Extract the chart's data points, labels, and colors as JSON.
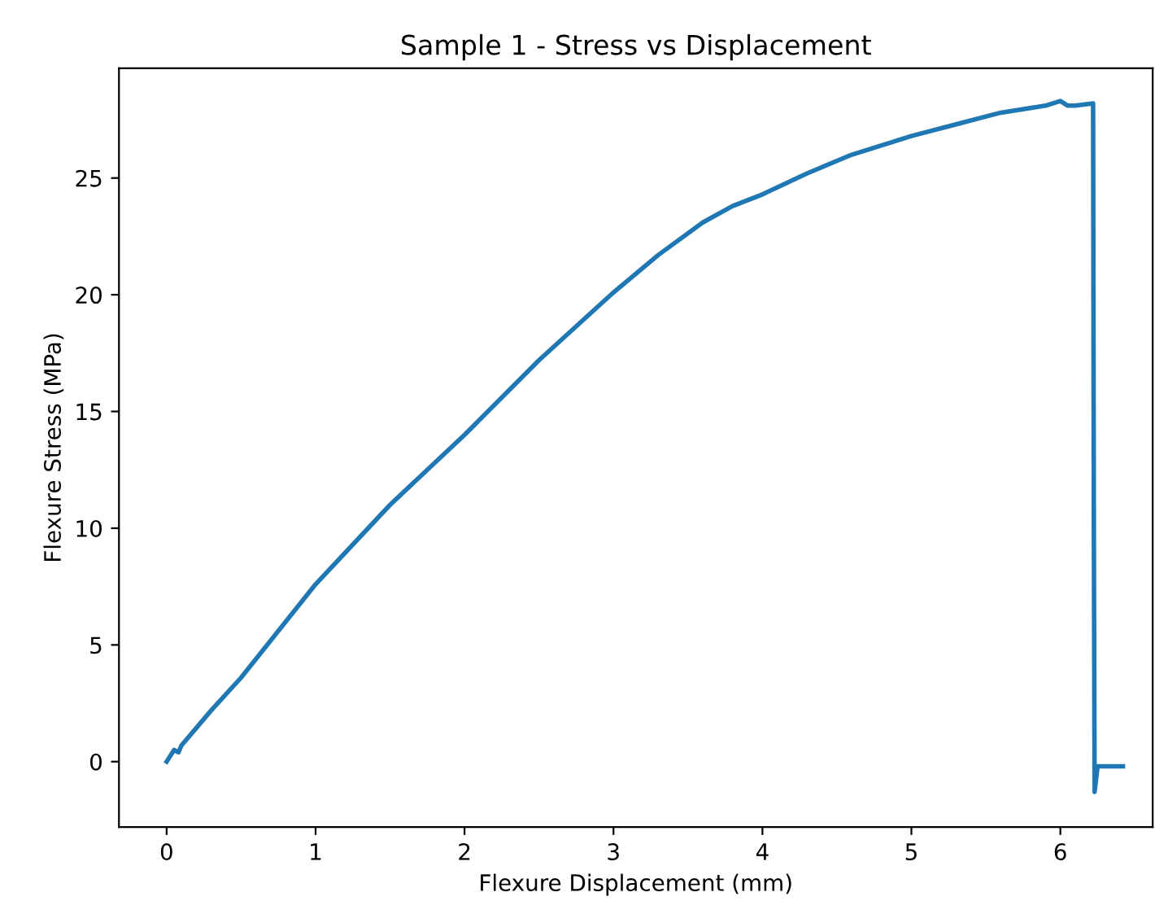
{
  "chart_data": {
    "type": "line",
    "title": "Sample 1 - Stress vs Displacement",
    "xlabel": "Flexure Displacement (mm)",
    "ylabel": "Flexure Stress (MPa)",
    "xlim": [
      -0.32,
      6.62
    ],
    "ylim": [
      -2.8,
      29.7
    ],
    "xticks": [
      0,
      1,
      2,
      3,
      4,
      5,
      6
    ],
    "yticks": [
      0,
      5,
      10,
      15,
      20,
      25
    ],
    "grid": false,
    "legend": false,
    "series": [
      {
        "color": "#1f77b4",
        "x": [
          0,
          0.05,
          0.08,
          0.1,
          0.3,
          0.5,
          1,
          1.5,
          2,
          2.5,
          3,
          3.3,
          3.6,
          3.8,
          4,
          4.3,
          4.6,
          5,
          5.3,
          5.6,
          5.9,
          6,
          6.05,
          6.1,
          6.22,
          6.225,
          6.23,
          6.25,
          6.42
        ],
        "values": [
          0,
          0.5,
          0.4,
          0.7,
          2.2,
          3.6,
          7.6,
          11.0,
          14.0,
          17.2,
          20.1,
          21.7,
          23.1,
          23.8,
          24.3,
          25.2,
          26.0,
          26.8,
          27.3,
          27.8,
          28.1,
          28.3,
          28.1,
          28.1,
          28.2,
          10,
          -1.3,
          -0.2,
          -0.2
        ]
      }
    ]
  }
}
